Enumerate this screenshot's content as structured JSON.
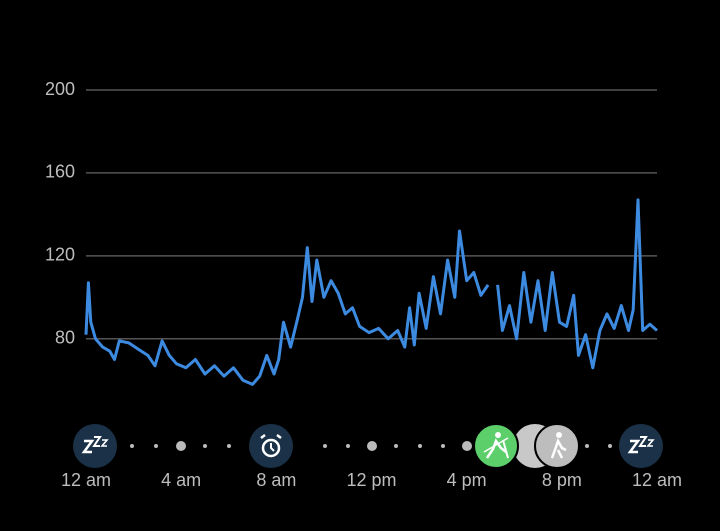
{
  "chart_data": {
    "type": "line",
    "x": [
      0,
      0.1,
      0.2,
      0.4,
      0.7,
      1,
      1.2,
      1.4,
      1.8,
      2.2,
      2.6,
      2.9,
      3.2,
      3.5,
      3.8,
      4.2,
      4.6,
      5,
      5.4,
      5.8,
      6.2,
      6.6,
      7,
      7.3,
      7.6,
      7.9,
      8.1,
      8.3,
      8.6,
      8.9,
      9.1,
      9.3,
      9.5,
      9.7,
      10,
      10.3,
      10.6,
      10.9,
      11.2,
      11.5,
      11.9,
      12.3,
      12.7,
      13.1,
      13.4,
      13.6,
      13.8,
      14,
      14.3,
      14.6,
      14.9,
      15.2,
      15.5,
      15.7,
      16,
      16.3,
      16.6,
      16.9,
      17.1,
      17.3,
      17.5,
      17.8,
      18.1,
      18.4,
      18.7,
      19,
      19.3,
      19.6,
      19.9,
      20.2,
      20.5,
      20.7,
      21,
      21.3,
      21.6,
      21.9,
      22.2,
      22.5,
      22.8,
      23,
      23.2,
      23.4,
      23.7,
      24
    ],
    "series": [
      {
        "color": "#3d8be0",
        "values": [
          82,
          107,
          88,
          80,
          76,
          74,
          70,
          79,
          78,
          75,
          72,
          67,
          79,
          72,
          68,
          66,
          70,
          63,
          67,
          62,
          66,
          60,
          58,
          62,
          72,
          63,
          70,
          88,
          76,
          90,
          100,
          124,
          98,
          118,
          100,
          108,
          102,
          92,
          95,
          86,
          83,
          85,
          80,
          84,
          76,
          95,
          77,
          102,
          85,
          110,
          92,
          118,
          100,
          132,
          108,
          112,
          101,
          106,
          null,
          106,
          84,
          96,
          80,
          112,
          88,
          108,
          84,
          112,
          88,
          86,
          101,
          72,
          82,
          66,
          84,
          92,
          85,
          96,
          84,
          94,
          147,
          84,
          87,
          84
        ]
      }
    ],
    "xlim": [
      0,
      24
    ],
    "ylim": [
      50,
      200
    ],
    "yticks": [
      80,
      120,
      160,
      200
    ],
    "xticks": [
      {
        "value": 0,
        "label": "12 am"
      },
      {
        "value": 4,
        "label": "4 am"
      },
      {
        "value": 8,
        "label": "8 am"
      },
      {
        "value": 12,
        "label": "12 pm"
      },
      {
        "value": 16,
        "label": "4 pm"
      },
      {
        "value": 20,
        "label": "8 pm"
      },
      {
        "value": 24,
        "label": "12 am"
      }
    ],
    "grid": true
  }
}
